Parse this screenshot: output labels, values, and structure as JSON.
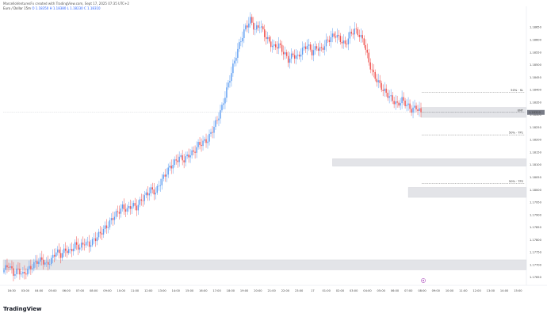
{
  "header": {
    "published_line": "MarcelloVenturesFx created with TradingView.com, Sept 17, 2025 07:35 UTC+2",
    "symbol_line": "Euro / Dollar 15m",
    "legend_values": "O 1.18350 H 1.18380 L 1.18230 C 1.18310"
  },
  "brand": {
    "label": "TradingView",
    "icon": "tradingview-logo-icon"
  },
  "colors": {
    "up": "#5b9cf2",
    "down": "#ef5350",
    "zone": "#e3e4e8",
    "level": "#555555"
  },
  "chart_data": {
    "type": "candlestick",
    "timeframe": "15m",
    "ylim": [
      1.1765,
      1.18715
    ],
    "price_ticks": [
      1.1865,
      1.186,
      1.1855,
      1.185,
      1.1845,
      1.184,
      1.1835,
      1.183,
      1.1825,
      1.182,
      1.1815,
      1.181,
      1.1805,
      1.18,
      1.1795,
      1.179,
      1.1785,
      1.178,
      1.1775,
      1.177,
      1.1765
    ],
    "time_ticks": [
      "16:30",
      "03:00",
      "04:00",
      "05:00",
      "06:00",
      "07:00",
      "08:00",
      "09:00",
      "10:00",
      "11:00",
      "12:00",
      "13:00",
      "14:00",
      "15:00",
      "16:00",
      "17:00",
      "18:00",
      "19:00",
      "20:00",
      "21:00",
      "22:00",
      "23:00",
      "17",
      "01:00",
      "02:00",
      "03:00",
      "04:00",
      "05:00",
      "06:00",
      "07:00",
      "08:00",
      "09:00",
      "10:00",
      "11:00",
      "12:00",
      "13:00",
      "14:00",
      "15:00"
    ],
    "last_price": 1.1831,
    "zones": [
      {
        "from_index": 108,
        "to": "right",
        "low": 1.1829,
        "high": 1.1833
      },
      {
        "from_index": 70,
        "to": "right",
        "low": 1.18095,
        "high": 1.18125
      },
      {
        "from_index": 86,
        "to": "right",
        "low": 1.1797,
        "high": 1.1801
      },
      {
        "from_index": 0,
        "to": "right",
        "low": 1.1768,
        "high": 1.1772
      }
    ],
    "levels": [
      {
        "label": "50% · SL",
        "price": 1.1839
      },
      {
        "label": "ENT",
        "price": 1.1831
      },
      {
        "label": "50% · TP1",
        "price": 1.1822
      },
      {
        "label": "50% · TP2",
        "price": 1.18025
      }
    ],
    "close_path": [
      1.1768,
      1.177,
      1.17665,
      1.1768,
      1.1766,
      1.1768,
      1.17695,
      1.17715,
      1.1772,
      1.177,
      1.1772,
      1.17755,
      1.1774,
      1.1776,
      1.17755,
      1.1778,
      1.1777,
      1.1779,
      1.1778,
      1.178,
      1.1782,
      1.1784,
      1.1786,
      1.1789,
      1.1791,
      1.1793,
      1.1792,
      1.1794,
      1.1793,
      1.1796,
      1.1798,
      1.18,
      1.1799,
      1.1803,
      1.1806,
      1.1809,
      1.1811,
      1.1813,
      1.1812,
      1.1814,
      1.1815,
      1.1818,
      1.1819,
      1.182,
      1.1824,
      1.1828,
      1.1833,
      1.184,
      1.1847,
      1.1854,
      1.186,
      1.1865,
      1.1868,
      1.1864,
      1.1866,
      1.1862,
      1.1859,
      1.1857,
      1.1858,
      1.1855,
      1.1852,
      1.1854,
      1.1853,
      1.1856,
      1.1858,
      1.1855,
      1.1857,
      1.1856,
      1.1859,
      1.1861,
      1.1862,
      1.186,
      1.1858,
      1.1862,
      1.1864,
      1.1862,
      1.1859,
      1.1851,
      1.1846,
      1.1843,
      1.184,
      1.1838,
      1.1836,
      1.1834,
      1.1836,
      1.1834,
      1.1832,
      1.1833,
      1.1831
    ]
  }
}
